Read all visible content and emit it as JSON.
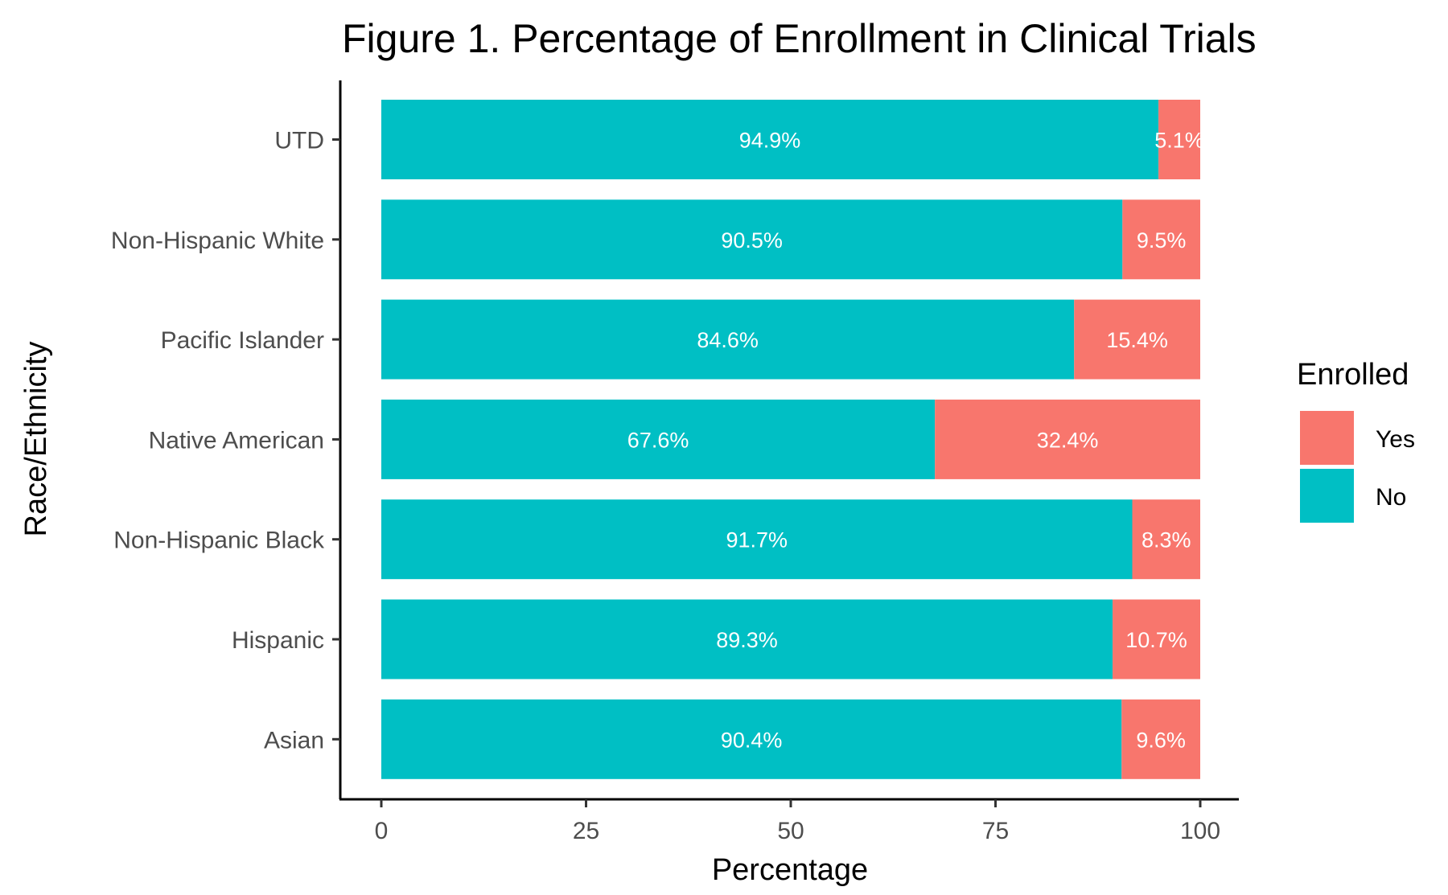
{
  "chart_data": {
    "type": "bar",
    "orientation": "horizontal",
    "stacked": true,
    "title": "Figure 1. Percentage of Enrollment in Clinical Trials",
    "xlabel": "Percentage",
    "ylabel": "Race/Ethnicity",
    "xlim": [
      0,
      100
    ],
    "x_ticks": [
      "0",
      "25",
      "50",
      "75",
      "100"
    ],
    "x_tick_values": [
      0,
      25,
      50,
      75,
      100
    ],
    "categories": [
      "UTD",
      "Non-Hispanic White",
      "Pacific Islander",
      "Native American",
      "Non-Hispanic Black",
      "Hispanic",
      "Asian"
    ],
    "series": [
      {
        "name": "No",
        "color": "#00BFC4",
        "values": [
          94.9,
          90.5,
          84.6,
          67.6,
          91.7,
          89.3,
          90.4
        ],
        "labels": [
          "94.9%",
          "90.5%",
          "84.6%",
          "67.6%",
          "91.7%",
          "89.3%",
          "90.4%"
        ]
      },
      {
        "name": "Yes",
        "color": "#F8766D",
        "values": [
          5.1,
          9.5,
          15.4,
          32.4,
          8.3,
          10.7,
          9.6
        ],
        "labels": [
          "5.1%",
          "9.5%",
          "15.4%",
          "32.4%",
          "8.3%",
          "10.7%",
          "9.6%"
        ]
      }
    ],
    "legend": {
      "title": "Enrolled",
      "position": "right",
      "entries": [
        {
          "label": "Yes",
          "color": "#F8766D"
        },
        {
          "label": "No",
          "color": "#00BFC4"
        }
      ]
    },
    "grid": false
  }
}
